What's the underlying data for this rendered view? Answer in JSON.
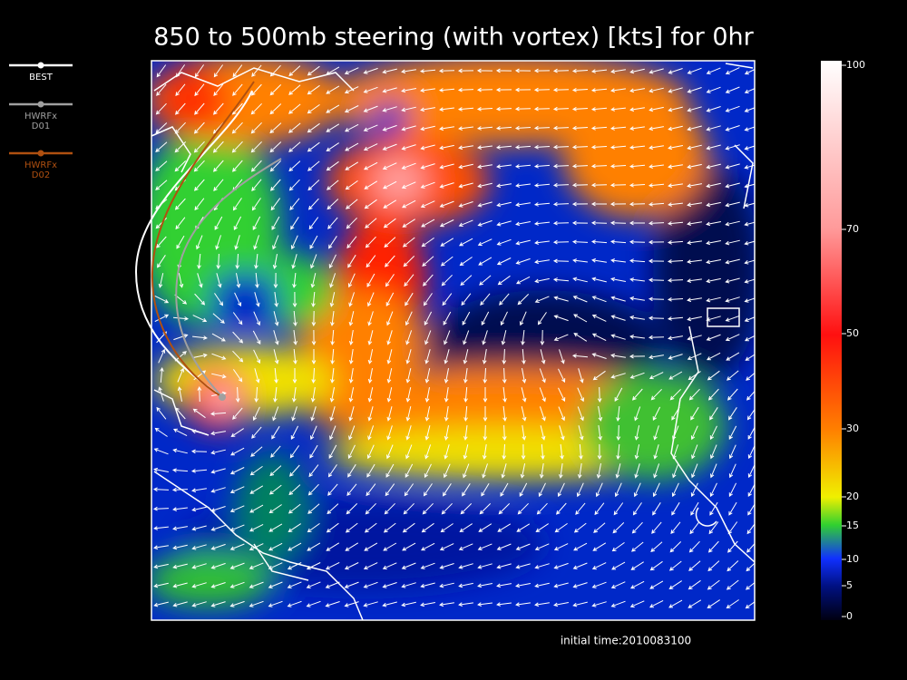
{
  "title": "850 to 500mb steering (with vortex) [kts] for 0hr",
  "legend": [
    {
      "lines": [
        "BEST"
      ],
      "color": "#ffffff"
    },
    {
      "lines": [
        "HWRFx",
        "D01"
      ],
      "color": "#a0a0a0"
    },
    {
      "lines": [
        "HWRFx",
        "D02"
      ],
      "color": "#b05010"
    }
  ],
  "colorbar_ticks": [
    100,
    70,
    50,
    30,
    20,
    15,
    10,
    5,
    0
  ],
  "initial_time": "initial time:2010083100"
}
